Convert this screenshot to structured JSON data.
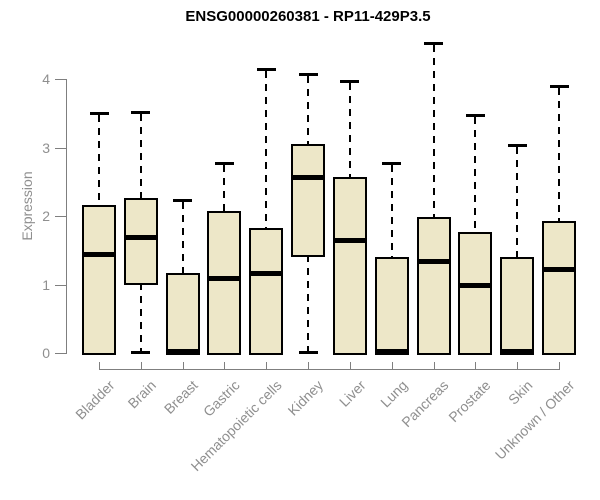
{
  "chart_data": {
    "type": "boxplot",
    "title": "ENSG00000260381 - RP11-429P3.5",
    "ylabel": "Expression",
    "xlabel": "",
    "ylim": [
      0,
      4.6
    ],
    "yticks": [
      0,
      1,
      2,
      3,
      4
    ],
    "grid": false,
    "legend": false,
    "categories": [
      "Bladder",
      "Brain",
      "Breast",
      "Gastric",
      "Hematopoietic cells",
      "Kidney",
      "Liver",
      "Lung",
      "Pancreas",
      "Prostate",
      "Skin",
      "Unknown / Other"
    ],
    "boxes": [
      {
        "label": "Bladder",
        "low": 0,
        "q1": 0,
        "median": 1.45,
        "q3": 2.16,
        "high": 3.5
      },
      {
        "label": "Brain",
        "low": 0,
        "q1": 1.02,
        "median": 1.69,
        "q3": 2.27,
        "high": 3.52
      },
      {
        "label": "Breast",
        "low": 0,
        "q1": 0,
        "median": 0.03,
        "q3": 1.17,
        "high": 2.23
      },
      {
        "label": "Gastric",
        "low": 0,
        "q1": 0,
        "median": 1.1,
        "q3": 2.08,
        "high": 2.77
      },
      {
        "label": "Hematopoietic cells",
        "low": 0,
        "q1": 0,
        "median": 1.17,
        "q3": 1.83,
        "high": 4.15
      },
      {
        "label": "Kidney",
        "low": 0,
        "q1": 1.43,
        "median": 2.57,
        "q3": 3.05,
        "high": 4.08
      },
      {
        "label": "Liver",
        "low": 0,
        "q1": 0,
        "median": 1.65,
        "q3": 2.57,
        "high": 3.97
      },
      {
        "label": "Lung",
        "low": 0,
        "q1": 0,
        "median": 0.03,
        "q3": 1.4,
        "high": 2.77
      },
      {
        "label": "Pancreas",
        "low": 0,
        "q1": 0,
        "median": 1.35,
        "q3": 1.99,
        "high": 4.52
      },
      {
        "label": "Prostate",
        "low": 0,
        "q1": 0,
        "median": 1.0,
        "q3": 1.76,
        "high": 3.47
      },
      {
        "label": "Skin",
        "low": 0,
        "q1": 0,
        "median": 0.03,
        "q3": 1.4,
        "high": 3.04
      },
      {
        "label": "Unknown / Other",
        "low": 0,
        "q1": 0,
        "median": 1.23,
        "q3": 1.93,
        "high": 3.9
      }
    ],
    "colors": {
      "box_fill": "#EDE7C8",
      "box_border": "#000000",
      "median": "#000000",
      "whisker": "#000000",
      "axis": "#7f7f7f",
      "tick_label": "#8f8f8f",
      "title": "#000000",
      "background": "#ffffff"
    }
  }
}
